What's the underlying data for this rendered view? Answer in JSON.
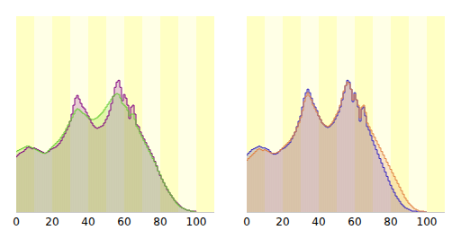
{
  "chart_data": [
    {
      "type": "bar",
      "x": [
        0,
        1,
        2,
        3,
        4,
        5,
        6,
        7,
        8,
        9,
        10,
        11,
        12,
        13,
        14,
        15,
        16,
        17,
        18,
        19,
        20,
        21,
        22,
        23,
        24,
        25,
        26,
        27,
        28,
        29,
        30,
        31,
        32,
        33,
        34,
        35,
        36,
        37,
        38,
        39,
        40,
        41,
        42,
        43,
        44,
        45,
        46,
        47,
        48,
        49,
        50,
        51,
        52,
        53,
        54,
        55,
        56,
        57,
        58,
        59,
        60,
        61,
        62,
        63,
        64,
        65,
        66,
        67,
        68,
        69,
        70,
        71,
        72,
        73,
        74,
        75,
        76,
        77,
        78,
        79,
        80,
        81,
        82,
        83,
        84,
        85,
        86,
        87,
        88,
        89,
        90,
        91,
        92,
        93,
        94,
        95,
        96,
        97,
        98,
        99,
        100
      ],
      "series": [
        {
          "color": "#800080",
          "values": [
            62,
            64,
            66,
            67,
            68,
            70,
            72,
            73,
            72,
            71,
            72,
            71,
            70,
            69,
            68,
            67,
            66,
            67,
            68,
            70,
            71,
            72,
            73,
            75,
            77,
            80,
            84,
            88,
            92,
            96,
            102,
            110,
            120,
            128,
            131,
            127,
            122,
            118,
            116,
            112,
            108,
            104,
            100,
            97,
            95,
            94,
            95,
            96,
            97,
            100,
            104,
            108,
            114,
            122,
            130,
            140,
            146,
            148,
            140,
            125,
            132,
            128,
            120,
            105,
            118,
            120,
            110,
            98,
            96,
            90,
            86,
            82,
            78,
            74,
            70,
            66,
            62,
            57,
            52,
            46,
            41,
            37,
            33,
            29,
            25,
            22,
            19,
            16,
            13,
            11,
            9,
            7,
            5,
            4,
            3,
            2,
            2,
            1,
            1,
            1,
            1
          ]
        },
        {
          "color": "#66cc33",
          "values": [
            68,
            69,
            70,
            71,
            72,
            73,
            74,
            74,
            73,
            72,
            71,
            70,
            69,
            68,
            67,
            66,
            66,
            67,
            69,
            71,
            73,
            75,
            77,
            79,
            81,
            84,
            87,
            90,
            94,
            98,
            102,
            106,
            110,
            114,
            116,
            115,
            113,
            111,
            110,
            108,
            106,
            105,
            104,
            104,
            105,
            106,
            108,
            110,
            112,
            115,
            118,
            121,
            124,
            127,
            130,
            132,
            133,
            132,
            128,
            122,
            120,
            118,
            114,
            108,
            110,
            110,
            104,
            96,
            93,
            88,
            84,
            80,
            76,
            72,
            68,
            64,
            60,
            56,
            51,
            46,
            42,
            37,
            33,
            29,
            26,
            22,
            19,
            16,
            13,
            10,
            8,
            6,
            5,
            4,
            3,
            2,
            2,
            1,
            1,
            0,
            0
          ]
        }
      ],
      "xlim": [
        0,
        110
      ],
      "xticks": [
        0,
        20,
        40,
        60,
        80,
        100
      ],
      "ylim": [
        0,
        220
      ],
      "tick_labels": "x",
      "stacked": false
    },
    {
      "type": "bar",
      "x": [
        0,
        1,
        2,
        3,
        4,
        5,
        6,
        7,
        8,
        9,
        10,
        11,
        12,
        13,
        14,
        15,
        16,
        17,
        18,
        19,
        20,
        21,
        22,
        23,
        24,
        25,
        26,
        27,
        28,
        29,
        30,
        31,
        32,
        33,
        34,
        35,
        36,
        37,
        38,
        39,
        40,
        41,
        42,
        43,
        44,
        45,
        46,
        47,
        48,
        49,
        50,
        51,
        52,
        53,
        54,
        55,
        56,
        57,
        58,
        59,
        60,
        61,
        62,
        63,
        64,
        65,
        66,
        67,
        68,
        69,
        70,
        71,
        72,
        73,
        74,
        75,
        76,
        77,
        78,
        79,
        80,
        81,
        82,
        83,
        84,
        85,
        86,
        87,
        88,
        89,
        90,
        91,
        92,
        93,
        94,
        95,
        96,
        97,
        98,
        99,
        100
      ],
      "series": [
        {
          "color": "#3020c0",
          "values": [
            64,
            66,
            68,
            70,
            71,
            72,
            73,
            74,
            73,
            72,
            72,
            71,
            70,
            68,
            66,
            65,
            65,
            66,
            68,
            70,
            71,
            72,
            74,
            76,
            78,
            82,
            86,
            90,
            96,
            102,
            108,
            118,
            128,
            134,
            138,
            134,
            128,
            122,
            118,
            114,
            108,
            104,
            100,
            98,
            96,
            95,
            96,
            98,
            100,
            104,
            108,
            112,
            118,
            126,
            134,
            142,
            148,
            146,
            138,
            124,
            134,
            126,
            118,
            102,
            116,
            118,
            108,
            96,
            92,
            86,
            80,
            75,
            70,
            65,
            60,
            55,
            50,
            45,
            40,
            35,
            30,
            26,
            22,
            18,
            15,
            12,
            9,
            7,
            5,
            4,
            3,
            2,
            1,
            1,
            1,
            0,
            0,
            0,
            0,
            0,
            0
          ]
        },
        {
          "color": "#e08040",
          "values": [
            58,
            60,
            62,
            64,
            66,
            68,
            70,
            71,
            70,
            69,
            70,
            69,
            68,
            67,
            66,
            66,
            66,
            67,
            68,
            70,
            72,
            74,
            76,
            78,
            80,
            83,
            86,
            90,
            95,
            100,
            106,
            114,
            124,
            130,
            134,
            130,
            126,
            120,
            116,
            112,
            108,
            104,
            100,
            98,
            97,
            96,
            97,
            99,
            102,
            106,
            110,
            114,
            120,
            128,
            136,
            142,
            146,
            144,
            138,
            126,
            132,
            126,
            120,
            106,
            118,
            120,
            112,
            100,
            96,
            92,
            88,
            84,
            80,
            76,
            72,
            68,
            64,
            60,
            56,
            52,
            48,
            44,
            40,
            36,
            32,
            28,
            24,
            20,
            16,
            13,
            10,
            8,
            6,
            4,
            3,
            2,
            1,
            1,
            1,
            0,
            0
          ]
        }
      ],
      "xlim": [
        0,
        110
      ],
      "xticks": [
        0,
        20,
        40,
        60,
        80,
        100
      ],
      "ylim": [
        0,
        220
      ],
      "tick_labels": "x",
      "stacked": false
    }
  ]
}
